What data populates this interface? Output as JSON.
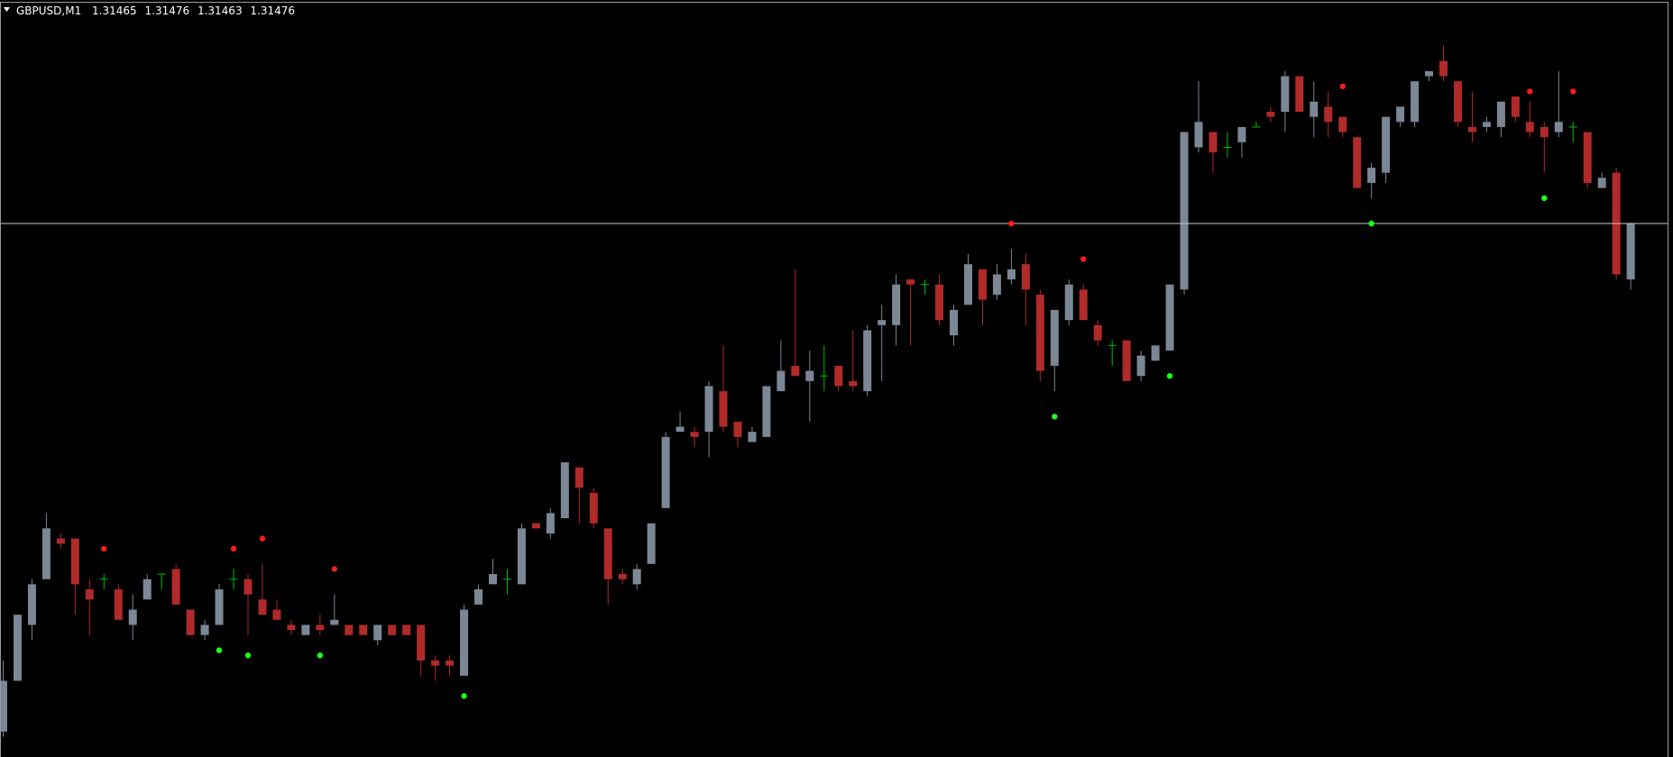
{
  "chart_data": {
    "type": "candlestick",
    "title": "GBPUSD,M1",
    "open": [
      1.31376,
      1.31386,
      1.31397,
      1.31406,
      1.31414,
      1.31414,
      1.31404,
      1.31406,
      1.31404,
      1.31397,
      1.31402,
      1.31407,
      1.31408,
      1.314,
      1.31395,
      1.31397,
      1.31406,
      1.31406,
      1.31402,
      1.314,
      1.31397,
      1.31395,
      1.31397,
      1.31397,
      1.31397,
      1.31397,
      1.31394,
      1.31397,
      1.31397,
      1.31397,
      1.3139,
      1.3139,
      1.31387,
      1.31401,
      1.31405,
      1.31406,
      1.31405,
      1.31417,
      1.31415,
      1.31418,
      1.31428,
      1.31423,
      1.31416,
      1.31407,
      1.31405,
      1.31409,
      1.3142,
      1.31435,
      1.31435,
      1.31435,
      1.31443,
      1.31437,
      1.31433,
      1.31434,
      1.31443,
      1.31448,
      1.31445,
      1.31446,
      1.31448,
      1.31445,
      1.31443,
      1.31456,
      1.31456,
      1.31465,
      1.31464,
      1.31464,
      1.31454,
      1.3146,
      1.31467,
      1.31462,
      1.31465,
      1.31468,
      1.31462,
      1.31448,
      1.31457,
      1.31463,
      1.31456,
      1.31452,
      1.31453,
      1.31446,
      1.31449,
      1.31451,
      1.31463,
      1.31491,
      1.31494,
      1.31491,
      1.31492,
      1.31495,
      1.31498,
      1.31498,
      1.31505,
      1.31497,
      1.31499,
      1.31497,
      1.31493,
      1.31484,
      1.31486,
      1.31496,
      1.31496,
      1.31505,
      1.31508,
      1.31504,
      1.31495,
      1.31495,
      1.31495,
      1.31501,
      1.31496,
      1.31495,
      1.31494,
      1.31495,
      1.31494,
      1.31483,
      1.31486,
      1.31465
    ],
    "high": [
      1.3139,
      1.31399,
      1.31406,
      1.31419,
      1.31415,
      1.31414,
      1.31406,
      1.31407,
      1.31405,
      1.31403,
      1.31407,
      1.31407,
      1.31409,
      1.314,
      1.31398,
      1.31405,
      1.31408,
      1.31407,
      1.31409,
      1.31402,
      1.31398,
      1.31397,
      1.31399,
      1.31403,
      1.31397,
      1.31397,
      1.31397,
      1.31397,
      1.31397,
      1.31397,
      1.31391,
      1.31391,
      1.31401,
      1.31405,
      1.3141,
      1.31408,
      1.31417,
      1.31417,
      1.3142,
      1.31429,
      1.31428,
      1.31424,
      1.31416,
      1.31408,
      1.31409,
      1.31417,
      1.31435,
      1.31439,
      1.31436,
      1.31445,
      1.31452,
      1.31437,
      1.31436,
      1.31444,
      1.31453,
      1.31467,
      1.31451,
      1.31452,
      1.31448,
      1.31455,
      1.31456,
      1.3146,
      1.31466,
      1.31465,
      1.31465,
      1.31466,
      1.3146,
      1.3147,
      1.31467,
      1.31468,
      1.31471,
      1.3147,
      1.31463,
      1.31459,
      1.31465,
      1.31464,
      1.31457,
      1.31453,
      1.31453,
      1.31451,
      1.31452,
      1.31464,
      1.31494,
      1.31504,
      1.31494,
      1.31494,
      1.31495,
      1.31496,
      1.31499,
      1.31506,
      1.31505,
      1.31504,
      1.31502,
      1.31497,
      1.31493,
      1.31488,
      1.31497,
      1.31499,
      1.31504,
      1.31506,
      1.31511,
      1.31504,
      1.31502,
      1.31497,
      1.315,
      1.31501,
      1.315,
      1.31496,
      1.31506,
      1.31496,
      1.31494,
      1.31486,
      1.31487,
      1.31476
    ],
    "low": [
      1.31375,
      1.31386,
      1.31394,
      1.31406,
      1.31412,
      1.31399,
      1.31395,
      1.31404,
      1.31398,
      1.31394,
      1.31402,
      1.31404,
      1.31401,
      1.31395,
      1.31394,
      1.31397,
      1.31404,
      1.31395,
      1.31399,
      1.31398,
      1.31395,
      1.31395,
      1.31395,
      1.31397,
      1.31395,
      1.31395,
      1.31393,
      1.31395,
      1.31395,
      1.31387,
      1.31386,
      1.31387,
      1.31387,
      1.31401,
      1.31405,
      1.31403,
      1.31405,
      1.31416,
      1.31414,
      1.31418,
      1.31417,
      1.31416,
      1.31401,
      1.31405,
      1.31404,
      1.31409,
      1.3142,
      1.31435,
      1.31432,
      1.3143,
      1.31435,
      1.31432,
      1.31433,
      1.31434,
      1.31443,
      1.31446,
      1.31437,
      1.31443,
      1.31443,
      1.31443,
      1.31442,
      1.31445,
      1.31452,
      1.31452,
      1.31462,
      1.31456,
      1.31452,
      1.3146,
      1.31456,
      1.31461,
      1.31464,
      1.31456,
      1.31445,
      1.31443,
      1.31456,
      1.31457,
      1.31452,
      1.31448,
      1.31445,
      1.31445,
      1.31449,
      1.31451,
      1.31462,
      1.3149,
      1.31486,
      1.31489,
      1.31489,
      1.31495,
      1.31496,
      1.31494,
      1.31498,
      1.31493,
      1.31493,
      1.31493,
      1.31483,
      1.31481,
      1.31484,
      1.31495,
      1.31495,
      1.31504,
      1.31504,
      1.31495,
      1.31492,
      1.31494,
      1.31493,
      1.31496,
      1.31493,
      1.31486,
      1.31493,
      1.31492,
      1.31483,
      1.31483,
      1.31465,
      1.31463
    ],
    "close": [
      1.31386,
      1.31399,
      1.31405,
      1.31416,
      1.31413,
      1.31405,
      1.31402,
      1.31406,
      1.31398,
      1.314,
      1.31406,
      1.31407,
      1.31401,
      1.31395,
      1.31397,
      1.31404,
      1.31406,
      1.31403,
      1.31399,
      1.31398,
      1.31396,
      1.31397,
      1.31396,
      1.31398,
      1.31395,
      1.31395,
      1.31397,
      1.31395,
      1.31395,
      1.3139,
      1.31389,
      1.31389,
      1.314,
      1.31404,
      1.31407,
      1.31406,
      1.31416,
      1.31416,
      1.31419,
      1.31429,
      1.31424,
      1.31417,
      1.31406,
      1.31406,
      1.31408,
      1.31417,
      1.31434,
      1.31436,
      1.31434,
      1.31444,
      1.31436,
      1.31434,
      1.31435,
      1.31444,
      1.31447,
      1.31446,
      1.31447,
      1.31446,
      1.31444,
      1.31444,
      1.31455,
      1.31457,
      1.31464,
      1.31464,
      1.31464,
      1.31457,
      1.31459,
      1.31468,
      1.31461,
      1.31466,
      1.31467,
      1.31463,
      1.31447,
      1.31459,
      1.31464,
      1.31457,
      1.31453,
      1.31452,
      1.31445,
      1.3145,
      1.31452,
      1.31464,
      1.31494,
      1.31496,
      1.3149,
      1.31491,
      1.31495,
      1.31495,
      1.31497,
      1.31505,
      1.31498,
      1.315,
      1.31496,
      1.31494,
      1.31483,
      1.31487,
      1.31497,
      1.31499,
      1.31504,
      1.31506,
      1.31505,
      1.31496,
      1.31494,
      1.31496,
      1.315,
      1.31497,
      1.31494,
      1.31493,
      1.31496,
      1.31495,
      1.31484,
      1.31485,
      1.31466,
      1.31476
    ],
    "colors": {
      "up": "#7b8794",
      "down": "#b02a2a",
      "doji": "#00c000"
    },
    "markers_high": {
      "color": "#ff1a1a",
      "values": [
        null,
        null,
        null,
        null,
        null,
        null,
        null,
        1.31412,
        null,
        null,
        null,
        null,
        null,
        null,
        null,
        null,
        1.31412,
        null,
        1.31414,
        null,
        null,
        null,
        null,
        1.31408,
        null,
        null,
        null,
        null,
        null,
        null,
        null,
        null,
        null,
        null,
        null,
        null,
        null,
        null,
        null,
        null,
        null,
        null,
        null,
        null,
        null,
        null,
        null,
        null,
        null,
        null,
        null,
        null,
        null,
        null,
        null,
        null,
        null,
        null,
        null,
        null,
        null,
        null,
        null,
        null,
        null,
        null,
        null,
        null,
        null,
        null,
        1.31476,
        null,
        null,
        null,
        null,
        1.31469,
        null,
        null,
        null,
        null,
        null,
        null,
        null,
        null,
        null,
        null,
        null,
        null,
        null,
        null,
        null,
        null,
        null,
        1.31503,
        null,
        null,
        null,
        null,
        null,
        null,
        null,
        null,
        null,
        null,
        null,
        null,
        1.31502,
        null,
        null,
        1.31502,
        null,
        null,
        null,
        null
      ]
    },
    "markers_low": {
      "color": "#1aff1a",
      "values": [
        null,
        null,
        null,
        null,
        null,
        null,
        null,
        null,
        null,
        null,
        null,
        null,
        null,
        null,
        null,
        1.31392,
        null,
        1.31391,
        null,
        null,
        null,
        null,
        1.31391,
        null,
        null,
        null,
        null,
        null,
        null,
        null,
        null,
        null,
        1.31383,
        null,
        null,
        null,
        null,
        null,
        null,
        null,
        null,
        null,
        null,
        null,
        null,
        null,
        null,
        null,
        null,
        null,
        null,
        null,
        null,
        null,
        null,
        null,
        null,
        null,
        null,
        null,
        null,
        null,
        null,
        null,
        null,
        null,
        null,
        null,
        null,
        null,
        null,
        null,
        null,
        1.31438,
        null,
        null,
        null,
        null,
        null,
        null,
        null,
        1.31446,
        null,
        null,
        null,
        null,
        null,
        null,
        null,
        null,
        null,
        null,
        null,
        null,
        null,
        1.31476,
        null,
        null,
        null,
        null,
        null,
        null,
        null,
        null,
        null,
        null,
        null,
        1.31481,
        null,
        null,
        null,
        null,
        null,
        null
      ]
    },
    "bid_line": {
      "value": 1.31476,
      "color": "#c8c8c8"
    },
    "ylim": [
      1.31371,
      1.3152
    ],
    "grid": false
  }
}
